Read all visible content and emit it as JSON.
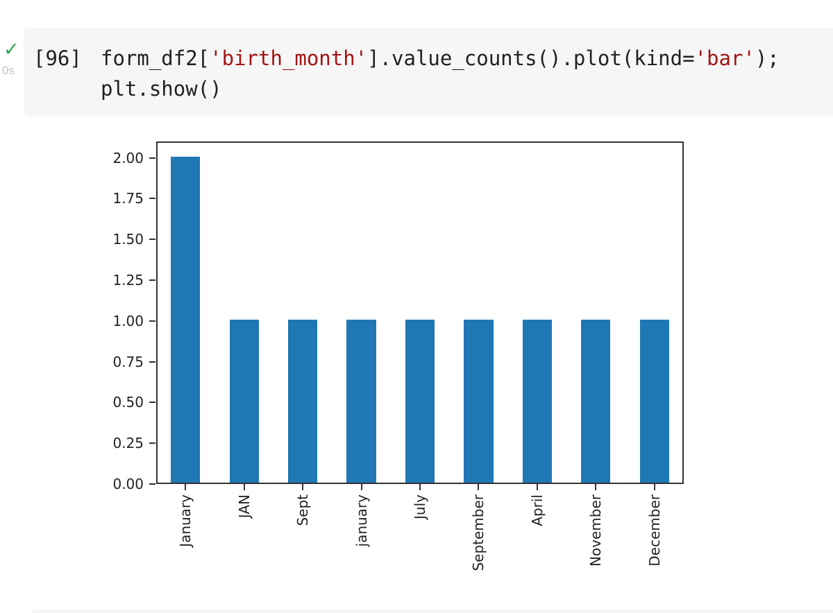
{
  "notebook": {
    "cell": {
      "check_glyph": "✓",
      "execution_time": "0s",
      "execution_count": "[96]",
      "code_lines": [
        {
          "segments": [
            {
              "text": "form_df2[",
              "style": "plain"
            },
            {
              "text": "'birth_month'",
              "style": "string"
            },
            {
              "text": "].value_counts().plot(kind=",
              "style": "plain"
            },
            {
              "text": "'bar'",
              "style": "string"
            },
            {
              "text": ");",
              "style": "plain"
            }
          ]
        },
        {
          "segments": [
            {
              "text": "plt.show()",
              "style": "plain"
            }
          ]
        }
      ]
    }
  },
  "colors": {
    "bar_blue": "#1f77b4",
    "code_string_red": "#a31515",
    "code_plain": "#202124",
    "success_green": "#2aa24a",
    "axis_dark": "#333333",
    "cell_background": "#f6f6f6"
  },
  "chart_data": {
    "type": "bar",
    "title": "",
    "xlabel": "",
    "ylabel": "",
    "categories": [
      "January",
      "JAN",
      "Sept",
      "january",
      "July",
      "September",
      "April",
      "November",
      "December"
    ],
    "values": [
      2,
      1,
      1,
      1,
      1,
      1,
      1,
      1,
      1
    ],
    "ylim": [
      0,
      2.1
    ],
    "yticks": [
      0,
      0.25,
      0.5,
      0.75,
      1,
      1.25,
      1.5,
      1.75,
      2
    ],
    "ytick_labels": [
      "0.00",
      "0.25",
      "0.50",
      "0.75",
      "1.00",
      "1.25",
      "1.50",
      "1.75",
      "2.00"
    ],
    "bar_color": "#1f77b4",
    "bar_width_fraction": 0.5,
    "tick_label_rotation": 90,
    "grid": false,
    "legend": false
  }
}
